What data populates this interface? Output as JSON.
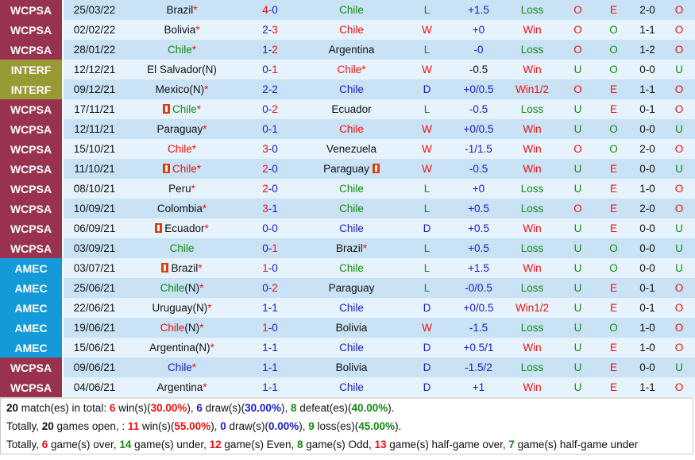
{
  "colors": {
    "comp_WCPSA": "#98324f",
    "comp_INTERF": "#9a9a34",
    "comp_AMEC": "#159ad9",
    "row_dark": "#c9e2f5",
    "row_light": "#e6f3fc",
    "red": "#f01010",
    "blue": "#1a1ad0",
    "green": "#138a13"
  },
  "matches": [
    {
      "comp": "WCPSA",
      "date": "25/03/22",
      "home": {
        "name": "Brazil",
        "color": "black",
        "neutral": false,
        "star": true,
        "card": false
      },
      "score": {
        "h": "4",
        "a": "0",
        "hc": "red",
        "ac": "blue"
      },
      "away": {
        "name": "Chile",
        "color": "green",
        "star": false,
        "card": false
      },
      "wl": {
        "v": "L",
        "c": "green"
      },
      "hcap": {
        "v": "+1.5",
        "c": "blue"
      },
      "res": {
        "v": "Loss",
        "c": "green"
      },
      "ou": {
        "v": "O",
        "c": "red"
      },
      "eo": {
        "v": "E",
        "c": "red"
      },
      "ht": "2-0",
      "htou": {
        "v": "O",
        "c": "red"
      }
    },
    {
      "comp": "WCPSA",
      "date": "02/02/22",
      "home": {
        "name": "Bolivia",
        "color": "black",
        "neutral": false,
        "star": true,
        "card": false
      },
      "score": {
        "h": "2",
        "a": "3",
        "hc": "blue",
        "ac": "red"
      },
      "away": {
        "name": "Chile",
        "color": "red",
        "star": false,
        "card": false
      },
      "wl": {
        "v": "W",
        "c": "red"
      },
      "hcap": {
        "v": "+0",
        "c": "blue"
      },
      "res": {
        "v": "Win",
        "c": "red"
      },
      "ou": {
        "v": "O",
        "c": "red"
      },
      "eo": {
        "v": "O",
        "c": "green"
      },
      "ht": "1-1",
      "htou": {
        "v": "O",
        "c": "red"
      }
    },
    {
      "comp": "WCPSA",
      "date": "28/01/22",
      "home": {
        "name": "Chile",
        "color": "green",
        "neutral": false,
        "star": true,
        "card": false
      },
      "score": {
        "h": "1",
        "a": "2",
        "hc": "blue",
        "ac": "red"
      },
      "away": {
        "name": "Argentina",
        "color": "black",
        "star": false,
        "card": false
      },
      "wl": {
        "v": "L",
        "c": "green"
      },
      "hcap": {
        "v": "-0",
        "c": "blue"
      },
      "res": {
        "v": "Loss",
        "c": "green"
      },
      "ou": {
        "v": "O",
        "c": "red"
      },
      "eo": {
        "v": "O",
        "c": "green"
      },
      "ht": "1-2",
      "htou": {
        "v": "O",
        "c": "red"
      }
    },
    {
      "comp": "INTERF",
      "date": "12/12/21",
      "home": {
        "name": "El Salvador",
        "color": "black",
        "neutral": true,
        "star": false,
        "card": false
      },
      "score": {
        "h": "0",
        "a": "1",
        "hc": "blue",
        "ac": "red"
      },
      "away": {
        "name": "Chile",
        "color": "red",
        "star": true,
        "card": false
      },
      "wl": {
        "v": "W",
        "c": "red"
      },
      "hcap": {
        "v": "-0.5",
        "c": "black"
      },
      "res": {
        "v": "Win",
        "c": "red"
      },
      "ou": {
        "v": "U",
        "c": "green"
      },
      "eo": {
        "v": "O",
        "c": "green"
      },
      "ht": "0-0",
      "htou": {
        "v": "U",
        "c": "green"
      }
    },
    {
      "comp": "INTERF",
      "date": "09/12/21",
      "home": {
        "name": "Mexico",
        "color": "black",
        "neutral": true,
        "star": true,
        "card": false
      },
      "score": {
        "h": "2",
        "a": "2",
        "hc": "blue",
        "ac": "blue"
      },
      "away": {
        "name": "Chile",
        "color": "blue",
        "star": false,
        "card": false
      },
      "wl": {
        "v": "D",
        "c": "blue"
      },
      "hcap": {
        "v": "+0/0.5",
        "c": "blue"
      },
      "res": {
        "v": "Win1/2",
        "c": "red"
      },
      "ou": {
        "v": "O",
        "c": "red"
      },
      "eo": {
        "v": "E",
        "c": "red"
      },
      "ht": "1-1",
      "htou": {
        "v": "O",
        "c": "red"
      }
    },
    {
      "comp": "WCPSA",
      "date": "17/11/21",
      "home": {
        "name": "Chile",
        "color": "green",
        "neutral": false,
        "star": true,
        "card": true
      },
      "score": {
        "h": "0",
        "a": "2",
        "hc": "blue",
        "ac": "red"
      },
      "away": {
        "name": "Ecuador",
        "color": "black",
        "star": false,
        "card": false
      },
      "wl": {
        "v": "L",
        "c": "green"
      },
      "hcap": {
        "v": "-0.5",
        "c": "blue"
      },
      "res": {
        "v": "Loss",
        "c": "green"
      },
      "ou": {
        "v": "U",
        "c": "green"
      },
      "eo": {
        "v": "E",
        "c": "red"
      },
      "ht": "0-1",
      "htou": {
        "v": "O",
        "c": "red"
      }
    },
    {
      "comp": "WCPSA",
      "date": "12/11/21",
      "home": {
        "name": "Paraguay",
        "color": "black",
        "neutral": false,
        "star": true,
        "card": false
      },
      "score": {
        "h": "0",
        "a": "1",
        "hc": "blue",
        "ac": "blue"
      },
      "away": {
        "name": "Chile",
        "color": "red",
        "star": false,
        "card": false
      },
      "wl": {
        "v": "W",
        "c": "red"
      },
      "hcap": {
        "v": "+0/0.5",
        "c": "blue"
      },
      "res": {
        "v": "Win",
        "c": "red"
      },
      "ou": {
        "v": "U",
        "c": "green"
      },
      "eo": {
        "v": "O",
        "c": "green"
      },
      "ht": "0-0",
      "htou": {
        "v": "U",
        "c": "green"
      }
    },
    {
      "comp": "WCPSA",
      "date": "15/10/21",
      "home": {
        "name": "Chile",
        "color": "red",
        "neutral": false,
        "star": true,
        "card": false
      },
      "score": {
        "h": "3",
        "a": "0",
        "hc": "red",
        "ac": "blue"
      },
      "away": {
        "name": "Venezuela",
        "color": "black",
        "star": false,
        "card": false
      },
      "wl": {
        "v": "W",
        "c": "red"
      },
      "hcap": {
        "v": "-1/1.5",
        "c": "blue"
      },
      "res": {
        "v": "Win",
        "c": "red"
      },
      "ou": {
        "v": "O",
        "c": "red"
      },
      "eo": {
        "v": "O",
        "c": "green"
      },
      "ht": "2-0",
      "htou": {
        "v": "O",
        "c": "red"
      }
    },
    {
      "comp": "WCPSA",
      "date": "11/10/21",
      "home": {
        "name": "Chile",
        "color": "red",
        "neutral": false,
        "star": true,
        "card": true
      },
      "score": {
        "h": "2",
        "a": "0",
        "hc": "red",
        "ac": "blue"
      },
      "away": {
        "name": "Paraguay",
        "color": "black",
        "star": false,
        "card": true
      },
      "wl": {
        "v": "W",
        "c": "red"
      },
      "hcap": {
        "v": "-0.5",
        "c": "blue"
      },
      "res": {
        "v": "Win",
        "c": "red"
      },
      "ou": {
        "v": "U",
        "c": "green"
      },
      "eo": {
        "v": "E",
        "c": "red"
      },
      "ht": "0-0",
      "htou": {
        "v": "U",
        "c": "green"
      }
    },
    {
      "comp": "WCPSA",
      "date": "08/10/21",
      "home": {
        "name": "Peru",
        "color": "black",
        "neutral": false,
        "star": true,
        "card": false
      },
      "score": {
        "h": "2",
        "a": "0",
        "hc": "red",
        "ac": "blue"
      },
      "away": {
        "name": "Chile",
        "color": "green",
        "star": false,
        "card": false
      },
      "wl": {
        "v": "L",
        "c": "green"
      },
      "hcap": {
        "v": "+0",
        "c": "blue"
      },
      "res": {
        "v": "Loss",
        "c": "green"
      },
      "ou": {
        "v": "U",
        "c": "green"
      },
      "eo": {
        "v": "E",
        "c": "red"
      },
      "ht": "1-0",
      "htou": {
        "v": "O",
        "c": "red"
      }
    },
    {
      "comp": "WCPSA",
      "date": "10/09/21",
      "home": {
        "name": "Colombia",
        "color": "black",
        "neutral": false,
        "star": true,
        "card": false
      },
      "score": {
        "h": "3",
        "a": "1",
        "hc": "red",
        "ac": "blue"
      },
      "away": {
        "name": "Chile",
        "color": "green",
        "star": false,
        "card": false
      },
      "wl": {
        "v": "L",
        "c": "green"
      },
      "hcap": {
        "v": "+0.5",
        "c": "blue"
      },
      "res": {
        "v": "Loss",
        "c": "green"
      },
      "ou": {
        "v": "O",
        "c": "red"
      },
      "eo": {
        "v": "E",
        "c": "red"
      },
      "ht": "2-0",
      "htou": {
        "v": "O",
        "c": "red"
      }
    },
    {
      "comp": "WCPSA",
      "date": "06/09/21",
      "home": {
        "name": "Ecuador",
        "color": "black",
        "neutral": false,
        "star": true,
        "card": true
      },
      "score": {
        "h": "0",
        "a": "0",
        "hc": "blue",
        "ac": "blue"
      },
      "away": {
        "name": "Chile",
        "color": "blue",
        "star": false,
        "card": false
      },
      "wl": {
        "v": "D",
        "c": "blue"
      },
      "hcap": {
        "v": "+0.5",
        "c": "blue"
      },
      "res": {
        "v": "Win",
        "c": "red"
      },
      "ou": {
        "v": "U",
        "c": "green"
      },
      "eo": {
        "v": "E",
        "c": "red"
      },
      "ht": "0-0",
      "htou": {
        "v": "U",
        "c": "green"
      }
    },
    {
      "comp": "WCPSA",
      "date": "03/09/21",
      "home": {
        "name": "Chile",
        "color": "green",
        "neutral": false,
        "star": false,
        "card": false
      },
      "score": {
        "h": "0",
        "a": "1",
        "hc": "blue",
        "ac": "red"
      },
      "away": {
        "name": "Brazil",
        "color": "black",
        "star": true,
        "card": false
      },
      "wl": {
        "v": "L",
        "c": "green"
      },
      "hcap": {
        "v": "+0.5",
        "c": "blue"
      },
      "res": {
        "v": "Loss",
        "c": "green"
      },
      "ou": {
        "v": "U",
        "c": "green"
      },
      "eo": {
        "v": "O",
        "c": "green"
      },
      "ht": "0-0",
      "htou": {
        "v": "U",
        "c": "green"
      }
    },
    {
      "comp": "AMEC",
      "date": "03/07/21",
      "home": {
        "name": "Brazil",
        "color": "black",
        "neutral": false,
        "star": true,
        "card": true
      },
      "score": {
        "h": "1",
        "a": "0",
        "hc": "red",
        "ac": "blue"
      },
      "away": {
        "name": "Chile",
        "color": "green",
        "star": false,
        "card": false
      },
      "wl": {
        "v": "L",
        "c": "green"
      },
      "hcap": {
        "v": "+1.5",
        "c": "blue"
      },
      "res": {
        "v": "Win",
        "c": "red"
      },
      "ou": {
        "v": "U",
        "c": "green"
      },
      "eo": {
        "v": "O",
        "c": "green"
      },
      "ht": "0-0",
      "htou": {
        "v": "U",
        "c": "green"
      }
    },
    {
      "comp": "AMEC",
      "date": "25/06/21",
      "home": {
        "name": "Chile",
        "color": "green",
        "neutral": true,
        "star": true,
        "card": false
      },
      "score": {
        "h": "0",
        "a": "2",
        "hc": "blue",
        "ac": "red"
      },
      "away": {
        "name": "Paraguay",
        "color": "black",
        "star": false,
        "card": false
      },
      "wl": {
        "v": "L",
        "c": "green"
      },
      "hcap": {
        "v": "-0/0.5",
        "c": "blue"
      },
      "res": {
        "v": "Loss",
        "c": "green"
      },
      "ou": {
        "v": "U",
        "c": "green"
      },
      "eo": {
        "v": "E",
        "c": "red"
      },
      "ht": "0-1",
      "htou": {
        "v": "O",
        "c": "red"
      }
    },
    {
      "comp": "AMEC",
      "date": "22/06/21",
      "home": {
        "name": "Uruguay",
        "color": "black",
        "neutral": true,
        "star": true,
        "card": false
      },
      "score": {
        "h": "1",
        "a": "1",
        "hc": "blue",
        "ac": "blue"
      },
      "away": {
        "name": "Chile",
        "color": "blue",
        "star": false,
        "card": false
      },
      "wl": {
        "v": "D",
        "c": "blue"
      },
      "hcap": {
        "v": "+0/0.5",
        "c": "blue"
      },
      "res": {
        "v": "Win1/2",
        "c": "red"
      },
      "ou": {
        "v": "U",
        "c": "green"
      },
      "eo": {
        "v": "E",
        "c": "red"
      },
      "ht": "0-1",
      "htou": {
        "v": "O",
        "c": "red"
      }
    },
    {
      "comp": "AMEC",
      "date": "19/06/21",
      "home": {
        "name": "Chile",
        "color": "red",
        "neutral": true,
        "star": true,
        "card": false
      },
      "score": {
        "h": "1",
        "a": "0",
        "hc": "red",
        "ac": "blue"
      },
      "away": {
        "name": "Bolivia",
        "color": "black",
        "star": false,
        "card": false
      },
      "wl": {
        "v": "W",
        "c": "red"
      },
      "hcap": {
        "v": "-1.5",
        "c": "blue"
      },
      "res": {
        "v": "Loss",
        "c": "green"
      },
      "ou": {
        "v": "U",
        "c": "green"
      },
      "eo": {
        "v": "O",
        "c": "green"
      },
      "ht": "1-0",
      "htou": {
        "v": "O",
        "c": "red"
      }
    },
    {
      "comp": "AMEC",
      "date": "15/06/21",
      "home": {
        "name": "Argentina",
        "color": "black",
        "neutral": true,
        "star": true,
        "card": false
      },
      "score": {
        "h": "1",
        "a": "1",
        "hc": "blue",
        "ac": "blue"
      },
      "away": {
        "name": "Chile",
        "color": "blue",
        "star": false,
        "card": false
      },
      "wl": {
        "v": "D",
        "c": "blue"
      },
      "hcap": {
        "v": "+0.5/1",
        "c": "blue"
      },
      "res": {
        "v": "Win",
        "c": "red"
      },
      "ou": {
        "v": "U",
        "c": "green"
      },
      "eo": {
        "v": "E",
        "c": "red"
      },
      "ht": "1-0",
      "htou": {
        "v": "O",
        "c": "red"
      }
    },
    {
      "comp": "WCPSA",
      "date": "09/06/21",
      "home": {
        "name": "Chile",
        "color": "blue",
        "neutral": false,
        "star": true,
        "card": false
      },
      "score": {
        "h": "1",
        "a": "1",
        "hc": "blue",
        "ac": "blue"
      },
      "away": {
        "name": "Bolivia",
        "color": "black",
        "star": false,
        "card": false
      },
      "wl": {
        "v": "D",
        "c": "blue"
      },
      "hcap": {
        "v": "-1.5/2",
        "c": "blue"
      },
      "res": {
        "v": "Loss",
        "c": "green"
      },
      "ou": {
        "v": "U",
        "c": "green"
      },
      "eo": {
        "v": "E",
        "c": "red"
      },
      "ht": "0-0",
      "htou": {
        "v": "U",
        "c": "green"
      }
    },
    {
      "comp": "WCPSA",
      "date": "04/06/21",
      "home": {
        "name": "Argentina",
        "color": "black",
        "neutral": false,
        "star": true,
        "card": false
      },
      "score": {
        "h": "1",
        "a": "1",
        "hc": "blue",
        "ac": "blue"
      },
      "away": {
        "name": "Chile",
        "color": "blue",
        "star": false,
        "card": false
      },
      "wl": {
        "v": "D",
        "c": "blue"
      },
      "hcap": {
        "v": "+1",
        "c": "blue"
      },
      "res": {
        "v": "Win",
        "c": "red"
      },
      "ou": {
        "v": "U",
        "c": "green"
      },
      "eo": {
        "v": "E",
        "c": "red"
      },
      "ht": "1-1",
      "htou": {
        "v": "O",
        "c": "red"
      }
    }
  ],
  "labels": {
    "star": "*",
    "neutral": "(N)",
    "score_sep": "-"
  },
  "summary": {
    "line1": [
      {
        "t": "20",
        "c": "black",
        "b": true
      },
      {
        "t": " match(es) in total: "
      },
      {
        "t": "6",
        "c": "red",
        "b": true
      },
      {
        "t": " win(s)("
      },
      {
        "t": "30.00%",
        "c": "red",
        "b": true
      },
      {
        "t": "), "
      },
      {
        "t": "6",
        "c": "blue",
        "b": true
      },
      {
        "t": " draw(s)("
      },
      {
        "t": "30.00%",
        "c": "blue",
        "b": true
      },
      {
        "t": "), "
      },
      {
        "t": "8",
        "c": "green",
        "b": true
      },
      {
        "t": " defeat(es)("
      },
      {
        "t": "40.00%",
        "c": "green",
        "b": true
      },
      {
        "t": ")."
      }
    ],
    "line2": [
      {
        "t": "Totally, "
      },
      {
        "t": "20",
        "c": "black",
        "b": true
      },
      {
        "t": " games open, : "
      },
      {
        "t": "11",
        "c": "red",
        "b": true
      },
      {
        "t": " win(s)("
      },
      {
        "t": "55.00%",
        "c": "red",
        "b": true
      },
      {
        "t": "), "
      },
      {
        "t": "0",
        "c": "blue",
        "b": true
      },
      {
        "t": " draw(s)("
      },
      {
        "t": "0.00%",
        "c": "blue",
        "b": true
      },
      {
        "t": "), "
      },
      {
        "t": "9",
        "c": "green",
        "b": true
      },
      {
        "t": " loss(es)("
      },
      {
        "t": "45.00%",
        "c": "green",
        "b": true
      },
      {
        "t": ")."
      }
    ],
    "line3": [
      {
        "t": "Totally, "
      },
      {
        "t": "6",
        "c": "red",
        "b": true
      },
      {
        "t": " game(s) over, "
      },
      {
        "t": "14",
        "c": "green",
        "b": true
      },
      {
        "t": " game(s) under, "
      },
      {
        "t": "12",
        "c": "red",
        "b": true
      },
      {
        "t": " game(s) Even, "
      },
      {
        "t": "8",
        "c": "green",
        "b": true
      },
      {
        "t": " game(s) Odd, "
      },
      {
        "t": "13",
        "c": "red",
        "b": true
      },
      {
        "t": " game(s) half-game over, "
      },
      {
        "t": "7",
        "c": "green",
        "b": true
      },
      {
        "t": " game(s) half-game under"
      }
    ]
  }
}
